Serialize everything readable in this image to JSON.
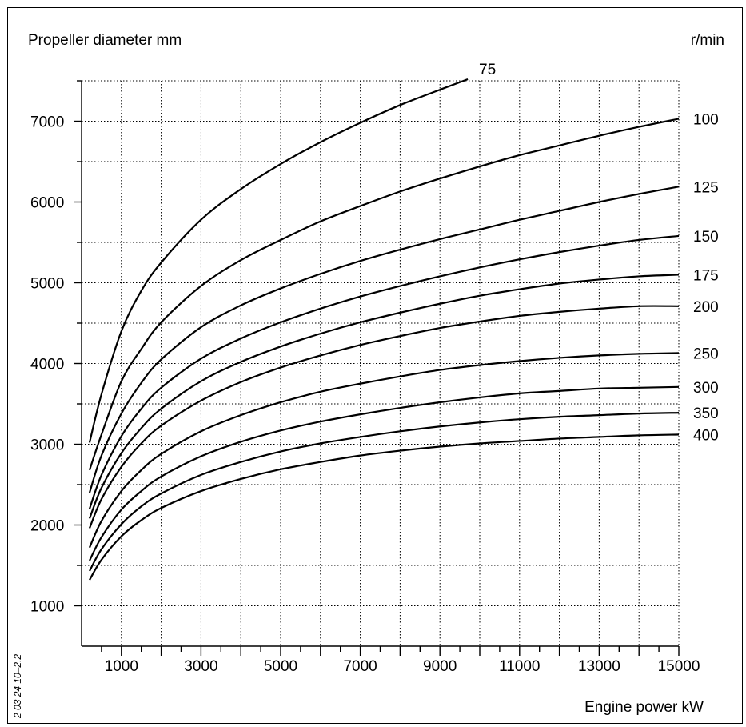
{
  "chart_data": {
    "type": "line",
    "ylabel": "Propeller diameter mm",
    "xlabel": "Engine power kW",
    "legend_title": "r/min",
    "side_note": "2 03 24 10–2.2",
    "xlim": [
      0,
      15000
    ],
    "ylim": [
      500,
      7500
    ],
    "x_ticks": [
      1000,
      3000,
      5000,
      7000,
      9000,
      11000,
      13000,
      15000
    ],
    "y_ticks": [
      1000,
      2000,
      3000,
      4000,
      5000,
      6000,
      7000
    ],
    "grid": true,
    "series": [
      {
        "name": "75",
        "points": [
          [
            200,
            3020
          ],
          [
            500,
            3620
          ],
          [
            1000,
            4400
          ],
          [
            1500,
            4900
          ],
          [
            2000,
            5250
          ],
          [
            3000,
            5780
          ],
          [
            4000,
            6160
          ],
          [
            5000,
            6470
          ],
          [
            6000,
            6740
          ],
          [
            7000,
            6980
          ],
          [
            8000,
            7200
          ],
          [
            9000,
            7390
          ],
          [
            9700,
            7520
          ]
        ]
      },
      {
        "name": "100",
        "points": [
          [
            200,
            2680
          ],
          [
            500,
            3120
          ],
          [
            1000,
            3780
          ],
          [
            1500,
            4180
          ],
          [
            2000,
            4510
          ],
          [
            3000,
            4960
          ],
          [
            4000,
            5280
          ],
          [
            5000,
            5530
          ],
          [
            6000,
            5760
          ],
          [
            7000,
            5950
          ],
          [
            8000,
            6130
          ],
          [
            9000,
            6290
          ],
          [
            10000,
            6440
          ],
          [
            11000,
            6580
          ],
          [
            12000,
            6700
          ],
          [
            13000,
            6820
          ],
          [
            14000,
            6930
          ],
          [
            15000,
            7030
          ]
        ]
      },
      {
        "name": "125",
        "points": [
          [
            200,
            2400
          ],
          [
            500,
            2860
          ],
          [
            1000,
            3380
          ],
          [
            1500,
            3760
          ],
          [
            2000,
            4050
          ],
          [
            3000,
            4450
          ],
          [
            4000,
            4720
          ],
          [
            5000,
            4930
          ],
          [
            6000,
            5110
          ],
          [
            7000,
            5270
          ],
          [
            8000,
            5410
          ],
          [
            9000,
            5540
          ],
          [
            10000,
            5660
          ],
          [
            11000,
            5780
          ],
          [
            12000,
            5890
          ],
          [
            13000,
            6000
          ],
          [
            14000,
            6100
          ],
          [
            15000,
            6190
          ]
        ]
      },
      {
        "name": "150",
        "points": [
          [
            200,
            2200
          ],
          [
            500,
            2620
          ],
          [
            1000,
            3100
          ],
          [
            1500,
            3440
          ],
          [
            2000,
            3700
          ],
          [
            3000,
            4060
          ],
          [
            4000,
            4310
          ],
          [
            5000,
            4510
          ],
          [
            6000,
            4680
          ],
          [
            7000,
            4830
          ],
          [
            8000,
            4960
          ],
          [
            9000,
            5080
          ],
          [
            10000,
            5190
          ],
          [
            11000,
            5290
          ],
          [
            12000,
            5380
          ],
          [
            13000,
            5460
          ],
          [
            14000,
            5530
          ],
          [
            15000,
            5580
          ]
        ]
      },
      {
        "name": "175",
        "points": [
          [
            200,
            2080
          ],
          [
            500,
            2460
          ],
          [
            1000,
            2890
          ],
          [
            1500,
            3200
          ],
          [
            2000,
            3440
          ],
          [
            3000,
            3780
          ],
          [
            4000,
            4020
          ],
          [
            5000,
            4210
          ],
          [
            6000,
            4370
          ],
          [
            7000,
            4510
          ],
          [
            8000,
            4630
          ],
          [
            9000,
            4740
          ],
          [
            10000,
            4840
          ],
          [
            11000,
            4920
          ],
          [
            12000,
            4990
          ],
          [
            13000,
            5040
          ],
          [
            14000,
            5080
          ],
          [
            15000,
            5100
          ]
        ]
      },
      {
        "name": "200",
        "points": [
          [
            200,
            1960
          ],
          [
            500,
            2320
          ],
          [
            1000,
            2720
          ],
          [
            1500,
            3010
          ],
          [
            2000,
            3230
          ],
          [
            3000,
            3540
          ],
          [
            4000,
            3770
          ],
          [
            5000,
            3950
          ],
          [
            6000,
            4100
          ],
          [
            7000,
            4230
          ],
          [
            8000,
            4340
          ],
          [
            9000,
            4440
          ],
          [
            10000,
            4520
          ],
          [
            11000,
            4590
          ],
          [
            12000,
            4640
          ],
          [
            13000,
            4680
          ],
          [
            14000,
            4710
          ],
          [
            15000,
            4710
          ]
        ]
      },
      {
        "name": "250",
        "points": [
          [
            200,
            1720
          ],
          [
            500,
            2050
          ],
          [
            1000,
            2420
          ],
          [
            1500,
            2680
          ],
          [
            2000,
            2880
          ],
          [
            3000,
            3160
          ],
          [
            4000,
            3360
          ],
          [
            5000,
            3520
          ],
          [
            6000,
            3650
          ],
          [
            7000,
            3750
          ],
          [
            8000,
            3840
          ],
          [
            9000,
            3920
          ],
          [
            10000,
            3980
          ],
          [
            11000,
            4030
          ],
          [
            12000,
            4070
          ],
          [
            13000,
            4100
          ],
          [
            14000,
            4120
          ],
          [
            15000,
            4130
          ]
        ]
      },
      {
        "name": "300",
        "points": [
          [
            200,
            1560
          ],
          [
            500,
            1850
          ],
          [
            1000,
            2190
          ],
          [
            1500,
            2420
          ],
          [
            2000,
            2600
          ],
          [
            3000,
            2850
          ],
          [
            4000,
            3030
          ],
          [
            5000,
            3170
          ],
          [
            6000,
            3280
          ],
          [
            7000,
            3370
          ],
          [
            8000,
            3450
          ],
          [
            9000,
            3520
          ],
          [
            10000,
            3580
          ],
          [
            11000,
            3630
          ],
          [
            12000,
            3660
          ],
          [
            13000,
            3690
          ],
          [
            14000,
            3700
          ],
          [
            15000,
            3710
          ]
        ]
      },
      {
        "name": "350",
        "points": [
          [
            200,
            1430
          ],
          [
            500,
            1700
          ],
          [
            1000,
            2010
          ],
          [
            1500,
            2230
          ],
          [
            2000,
            2390
          ],
          [
            3000,
            2620
          ],
          [
            4000,
            2780
          ],
          [
            5000,
            2910
          ],
          [
            6000,
            3010
          ],
          [
            7000,
            3090
          ],
          [
            8000,
            3160
          ],
          [
            9000,
            3220
          ],
          [
            10000,
            3270
          ],
          [
            11000,
            3310
          ],
          [
            12000,
            3340
          ],
          [
            13000,
            3360
          ],
          [
            14000,
            3380
          ],
          [
            15000,
            3390
          ]
        ]
      },
      {
        "name": "400",
        "points": [
          [
            200,
            1320
          ],
          [
            500,
            1570
          ],
          [
            1000,
            1860
          ],
          [
            1500,
            2060
          ],
          [
            2000,
            2210
          ],
          [
            3000,
            2420
          ],
          [
            4000,
            2570
          ],
          [
            5000,
            2690
          ],
          [
            6000,
            2780
          ],
          [
            7000,
            2860
          ],
          [
            8000,
            2920
          ],
          [
            9000,
            2970
          ],
          [
            10000,
            3010
          ],
          [
            11000,
            3040
          ],
          [
            12000,
            3070
          ],
          [
            13000,
            3090
          ],
          [
            14000,
            3110
          ],
          [
            15000,
            3120
          ]
        ]
      }
    ]
  }
}
